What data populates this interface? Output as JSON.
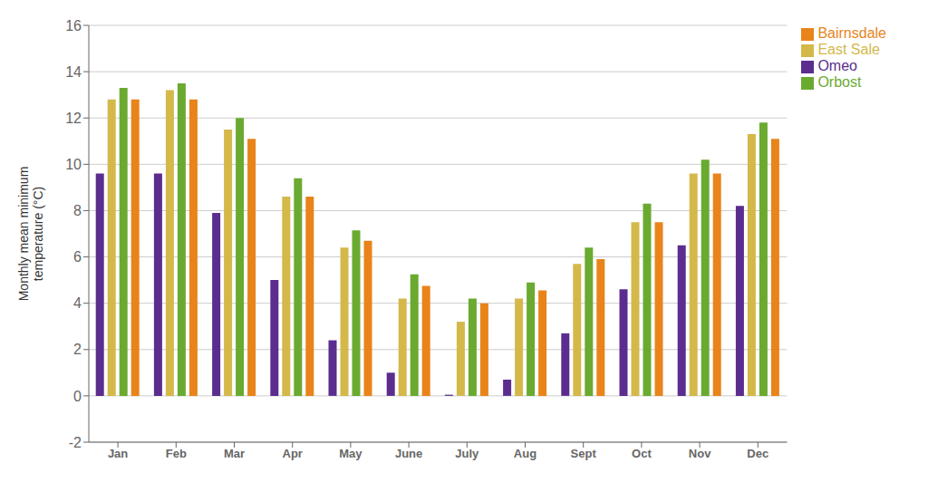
{
  "chart_data": {
    "type": "bar",
    "categories": [
      "Jan",
      "Feb",
      "Mar",
      "Apr",
      "May",
      "June",
      "July",
      "Aug",
      "Sept",
      "Oct",
      "Nov",
      "Dec"
    ],
    "series": [
      {
        "name": "Omeo",
        "color": "#5b2d8e",
        "values": [
          9.6,
          9.6,
          7.9,
          5.0,
          2.4,
          1.0,
          0.05,
          0.7,
          2.7,
          4.6,
          6.5,
          8.2
        ]
      },
      {
        "name": "East Sale",
        "color": "#d4b84a",
        "values": [
          12.8,
          13.2,
          11.5,
          8.6,
          6.4,
          4.2,
          3.2,
          4.2,
          5.7,
          7.5,
          9.6,
          11.3
        ]
      },
      {
        "name": "Orbost",
        "color": "#6aaa30",
        "values": [
          13.3,
          13.5,
          12.0,
          9.4,
          7.15,
          5.25,
          4.2,
          4.9,
          6.4,
          8.3,
          10.2,
          11.8
        ]
      },
      {
        "name": "Bairnsdale",
        "color": "#e8841a",
        "values": [
          12.8,
          12.8,
          11.1,
          8.6,
          6.7,
          4.75,
          4.0,
          4.55,
          5.9,
          7.5,
          9.6,
          11.1
        ]
      }
    ],
    "ylabel": "Monthly mean minimum\ntemperature (°C)",
    "ylim": [
      -2,
      16
    ],
    "yticks": [
      -2,
      0,
      2,
      4,
      6,
      8,
      10,
      12,
      14,
      16
    ],
    "grid": true,
    "legend": "upper right"
  }
}
